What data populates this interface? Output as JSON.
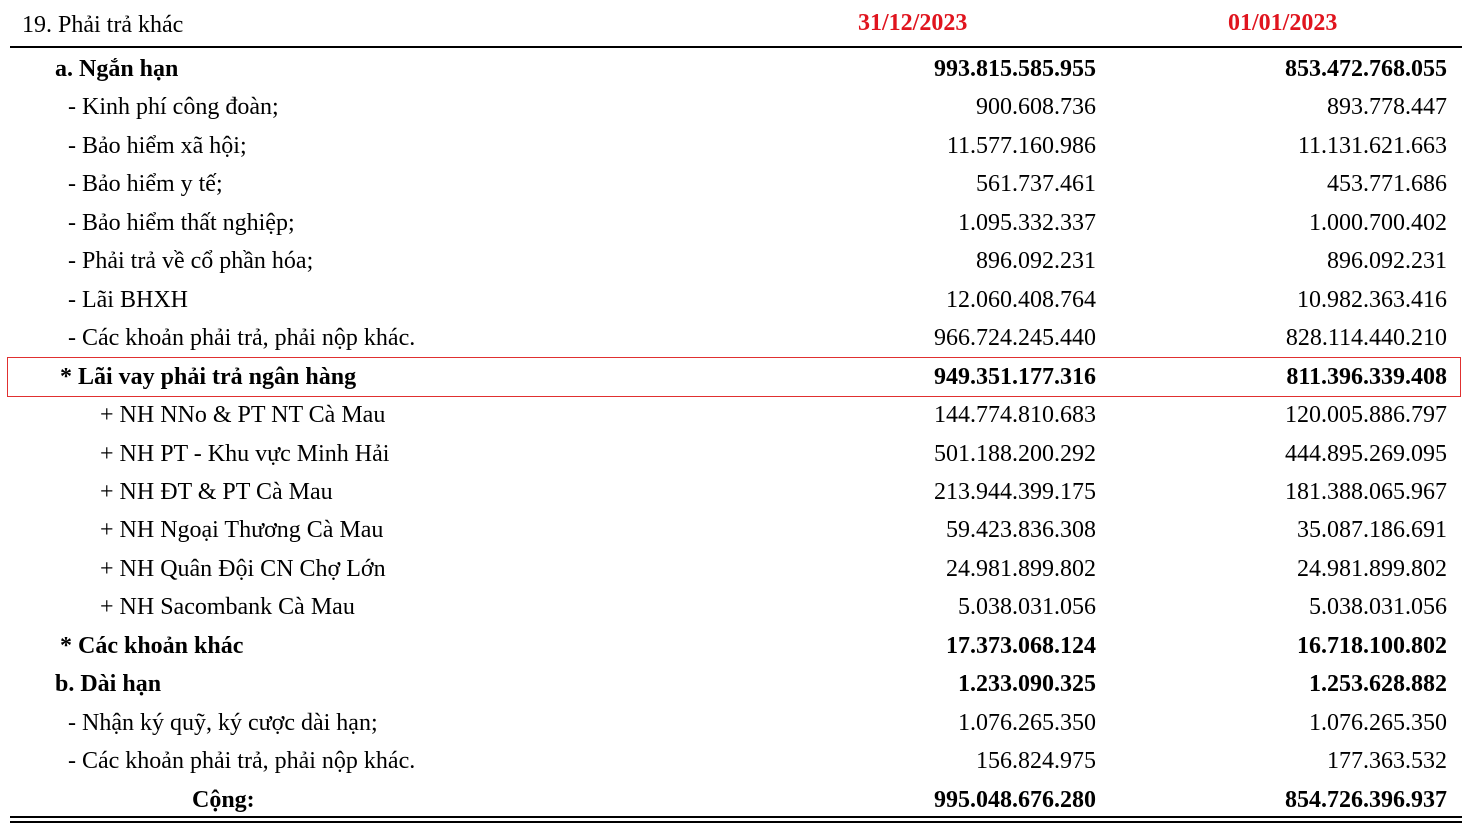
{
  "header": {
    "title": "19. Phải trả khác",
    "col1": "31/12/2023",
    "col2": "01/01/2023"
  },
  "rows": [
    [
      "a. Ngắn hạn",
      "993.815.585.955",
      "853.472.768.055"
    ],
    [
      "- Kinh phí công đoàn;",
      "900.608.736",
      "893.778.447"
    ],
    [
      "- Bảo hiểm xã hội;",
      "11.577.160.986",
      "11.131.621.663"
    ],
    [
      "- Bảo hiểm y tế;",
      "561.737.461",
      "453.771.686"
    ],
    [
      "- Bảo hiểm thất nghiệp;",
      "1.095.332.337",
      "1.000.700.402"
    ],
    [
      "- Phải trả về cổ phần hóa;",
      "896.092.231",
      "896.092.231"
    ],
    [
      "- Lãi BHXH",
      "12.060.408.764",
      "10.982.363.416"
    ],
    [
      "- Các khoản phải trả, phải nộp khác.",
      "966.724.245.440",
      "828.114.440.210"
    ],
    [
      "* Lãi vay phải trả ngân hàng",
      "949.351.177.316",
      "811.396.339.408"
    ],
    [
      "+ NH NNo & PT NT Cà Mau",
      "144.774.810.683",
      "120.005.886.797"
    ],
    [
      "+ NH PT - Khu vực Minh Hải",
      "501.188.200.292",
      "444.895.269.095"
    ],
    [
      "+ NH ĐT & PT Cà Mau",
      "213.944.399.175",
      "181.388.065.967"
    ],
    [
      "+ NH Ngoại Thương Cà Mau",
      "59.423.836.308",
      "35.087.186.691"
    ],
    [
      "+ NH Quân Đội CN Chợ Lớn",
      "24.981.899.802",
      "24.981.899.802"
    ],
    [
      "+ NH Sacombank Cà Mau",
      "5.038.031.056",
      "5.038.031.056"
    ],
    [
      "* Các khoản khác",
      "17.373.068.124",
      "16.718.100.802"
    ],
    [
      "b. Dài hạn",
      "1.233.090.325",
      "1.253.628.882"
    ],
    [
      "- Nhận ký quỹ, ký cược dài hạn;",
      "1.076.265.350",
      "1.076.265.350"
    ],
    [
      "- Các khoản phải trả, phải nộp khác.",
      "156.824.975",
      "177.363.532"
    ],
    [
      "Cộng:",
      "995.048.676.280",
      "854.726.396.937"
    ]
  ]
}
